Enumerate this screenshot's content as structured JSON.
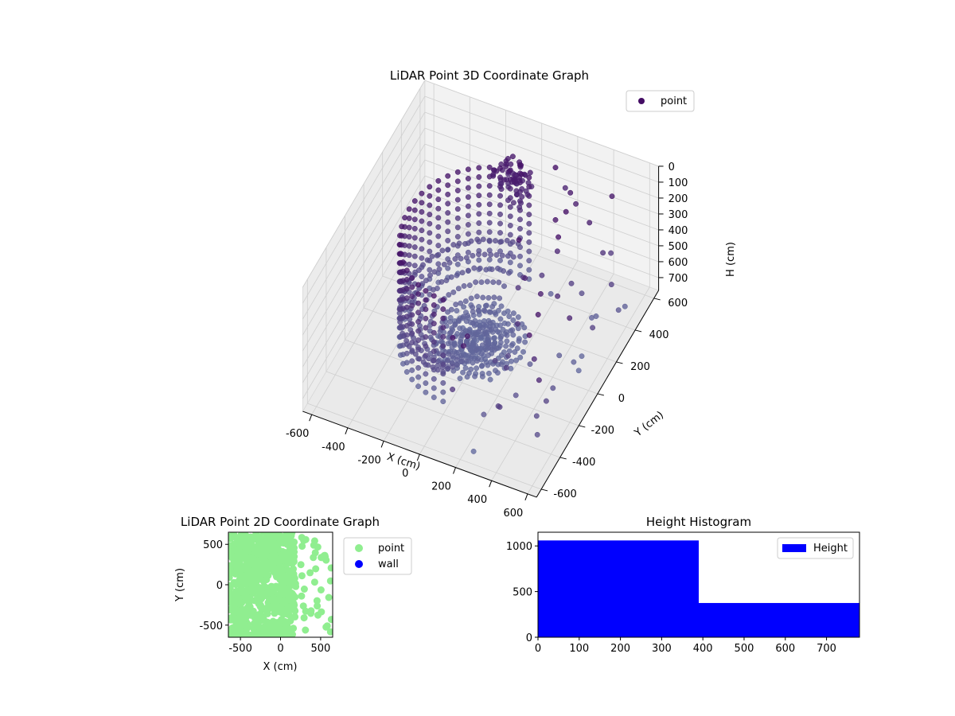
{
  "chart_data": [
    {
      "type": "scatter3d",
      "title": "LiDAR Point 3D Coordinate Graph",
      "xlabel": "X (cm)",
      "ylabel": "Y (cm)",
      "zlabel": "H (cm)",
      "xlim": [
        -650,
        650
      ],
      "ylim": [
        -650,
        650
      ],
      "zlim": [
        0,
        780
      ],
      "z_inverted": true,
      "xticks": [
        "-600",
        "-400",
        "-200",
        "0",
        "200",
        "400",
        "600"
      ],
      "yticks": [
        "-600",
        "-400",
        "-200",
        "0",
        "200",
        "400",
        "600"
      ],
      "zticks": [
        "0",
        "100",
        "200",
        "300",
        "400",
        "500",
        "600",
        "700"
      ],
      "legend": [
        {
          "label": "point",
          "color": "#440d64"
        }
      ],
      "legend_position": "top-right",
      "grid": true,
      "series": [
        {
          "name": "point",
          "description": "cylindrical scan rings around the sensor, 400 cm radius half-shell on the negative-X side, with outlying points toward +X",
          "ring_radius": [
            50,
            100,
            150,
            200,
            250,
            300,
            350,
            400
          ],
          "height_range": [
            0,
            780
          ]
        }
      ]
    },
    {
      "type": "scatter",
      "title": "LiDAR Point 2D Coordinate Graph",
      "xlabel": "X (cm)",
      "ylabel": "Y (cm)",
      "xlim": [
        -650,
        650
      ],
      "ylim": [
        -650,
        650
      ],
      "xticks": [
        "-500",
        "0",
        "500"
      ],
      "yticks": [
        "500",
        "0",
        "-500"
      ],
      "legend": [
        {
          "label": "point",
          "color": "#90ee90"
        },
        {
          "label": "wall",
          "color": "#0000ff"
        }
      ],
      "legend_position": "outside-right"
    },
    {
      "type": "bar",
      "title": "Height Histogram",
      "bins": [
        [
          0,
          390
        ],
        [
          390,
          780
        ]
      ],
      "values": [
        1060,
        375
      ],
      "xlim": [
        0,
        780
      ],
      "ylim": [
        0,
        1150
      ],
      "xticks": [
        "0",
        "100",
        "200",
        "300",
        "400",
        "500",
        "600",
        "700"
      ],
      "yticks": [
        "0",
        "500",
        "1000"
      ],
      "legend": [
        {
          "label": "Height",
          "color": "#0000ff"
        }
      ],
      "legend_position": "top-right",
      "color": "#0000ff"
    }
  ]
}
